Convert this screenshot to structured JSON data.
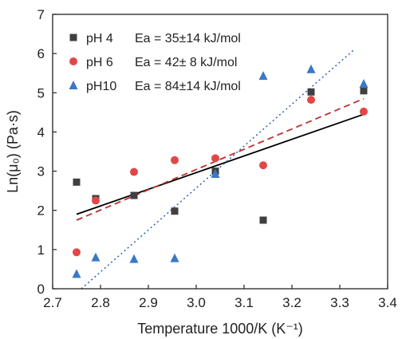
{
  "chart_data": {
    "type": "scatter",
    "xlabel": "Temperature 1000/K (K⁻¹)",
    "ylabel": "Ln(μ₀) (Pa·s)",
    "xlim": [
      2.7,
      3.4
    ],
    "ylim": [
      0,
      7
    ],
    "xticks": [
      "2.7",
      "2.8",
      "2.9",
      "3.0",
      "3.1",
      "3.2",
      "3.3",
      "3.4"
    ],
    "yticks": [
      "0",
      "1",
      "2",
      "3",
      "4",
      "5",
      "6",
      "7"
    ],
    "grid": false,
    "legend_position": "top-left",
    "series": [
      {
        "name": "pH 4",
        "ea_label": "Ea = 35±14 kJ/mol",
        "marker": "square",
        "color": "#404040",
        "fit_color": "#000000",
        "fit_style": "solid",
        "x": [
          2.75,
          2.79,
          2.87,
          2.955,
          3.04,
          3.14,
          3.24,
          3.35
        ],
        "y": [
          2.72,
          2.3,
          2.38,
          1.98,
          3.0,
          1.75,
          5.02,
          5.05
        ],
        "fit": [
          [
            2.75,
            1.9
          ],
          [
            3.35,
            4.45
          ]
        ]
      },
      {
        "name": "pH 6",
        "ea_label": "Ea = 42± 8 kJ/mol",
        "marker": "circle",
        "color": "#e04848",
        "fit_color": "#c0302e",
        "fit_style": "dashed",
        "x": [
          2.75,
          2.79,
          2.87,
          2.955,
          3.04,
          3.14,
          3.24,
          3.35
        ],
        "y": [
          0.93,
          2.25,
          2.98,
          3.28,
          3.33,
          3.15,
          4.82,
          4.52
        ],
        "fit": [
          [
            2.75,
            1.75
          ],
          [
            3.35,
            4.85
          ]
        ]
      },
      {
        "name": "pH10",
        "ea_label": "Ea = 84±14 kJ/mol",
        "marker": "triangle",
        "color": "#3a78c8",
        "fit_color": "#2e5ea8",
        "fit_style": "dotted",
        "x": [
          2.75,
          2.79,
          2.87,
          2.955,
          3.04,
          3.14,
          3.24,
          3.35
        ],
        "y": [
          0.38,
          0.8,
          0.76,
          0.78,
          2.93,
          5.43,
          5.6,
          5.23
        ],
        "fit": [
          [
            2.76,
            0.0
          ],
          [
            3.33,
            6.1
          ]
        ]
      }
    ]
  }
}
